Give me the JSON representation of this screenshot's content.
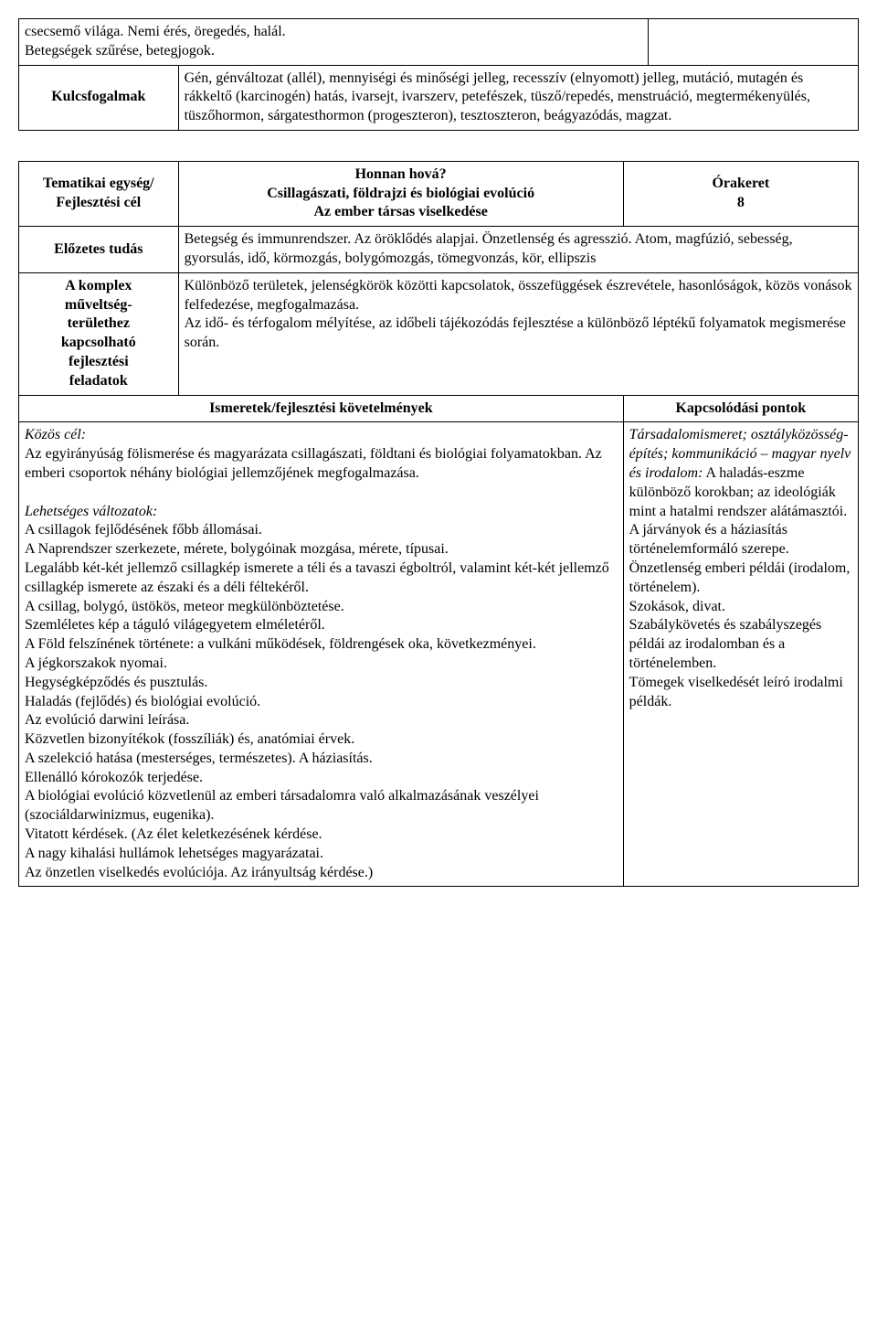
{
  "table1": {
    "row1_left": "csecsemő világa. Nemi érés, öregedés, halál.\nBetegségek szűrése, betegjogok.",
    "row2_label": "Kulcsfogalmak",
    "row2_content": "Gén, génváltozat (allél), mennyiségi és minőségi jelleg, recesszív (elnyomott) jelleg, mutáció, mutagén és rákkeltő (karcinogén) hatás, ivarsejt, ivarszerv, petefészek, tüsző/repedés, menstruáció, megtermékenyülés, tüszőhormon, sárgatesthormon (progeszteron), tesztoszteron, beágyazódás, magzat."
  },
  "table2": {
    "header": {
      "label1": "Tematikai egység/\nFejlesztési cél",
      "title": "Honnan hová?\nCsillagászati, földrajzi és biológiai evolúció\nAz ember társas viselkedése",
      "oraker_label": "Órakeret",
      "oraker_value": "8"
    },
    "elozetes": {
      "label": "Előzetes tudás",
      "content": "Betegség és immunrendszer. Az öröklődés alapjai. Önzetlenség és agresszió. Atom, magfúzió, sebesség, gyorsulás, idő, körmozgás, bolygómozgás, tömegvonzás, kör, ellipszis"
    },
    "komplex": {
      "label": "A komplex\nműveltség-\nterülethez\nkapcsolható\nfejlesztési\nfeladatok",
      "content": "Különböző területek, jelenségkörök közötti kapcsolatok, összefüggések észrevétele, hasonlóságok, közös vonások felfedezése, megfogalmazása.\nAz idő- és térfogalom mélyítése, az időbeli tájékozódás fejlesztése a különböző léptékű folyamatok megismerése során."
    },
    "section_headers": {
      "ismeretek": "Ismeretek/fejlesztési követelmények",
      "kapcsolodas": "Kapcsolódási pontok"
    },
    "main_content": {
      "kozos_cel_label": "Közös cél:",
      "kozos_cel_text": "Az egyirányúság fölismerése és magyarázata csillagászati, földtani és biológiai folyamatokban. Az emberi csoportok néhány biológiai jellemzőjének megfogalmazása.",
      "lehetseges_label": "Lehetséges változatok:",
      "lehetseges_items": [
        "A csillagok fejlődésének főbb állomásai.",
        "A Naprendszer szerkezete, mérete, bolygóinak mozgása, mérete, típusai.",
        "Legalább két-két jellemző csillagkép ismerete a téli és a tavaszi égboltról, valamint két-két jellemző csillagkép ismerete az északi és a déli féltekéről.",
        "A csillag, bolygó, üstökös, meteor megkülönböztetése.",
        "Szemléletes kép a táguló világegyetem elméletéről.",
        "A Föld felszínének története: a vulkáni működések, földrengések oka, következményei.",
        "A jégkorszakok nyomai.",
        "Hegységképződés és pusztulás.",
        "Haladás (fejlődés) és biológiai evolúció.",
        "Az evolúció darwini leírása.",
        "Közvetlen bizonyítékok (fosszíliák) és, anatómiai érvek.",
        "A szelekció hatása (mesterséges, természetes). A háziasítás.",
        "Ellenálló kórokozók terjedése.",
        "A biológiai evolúció közvetlenül az emberi társadalomra való alkalmazásának veszélyei (szociáldarwinizmus, eugenika).",
        "Vitatott kérdések. (Az élet keletkezésének kérdése.",
        "A nagy kihalási hullámok lehetséges magyarázatai.",
        "Az önzetlen viselkedés evolúciója. Az irányultság kérdése.)"
      ]
    },
    "kapcsolodas_content": {
      "italic_prefix": "Társadalomismeret; osztályközösség-építés; kommunikáció – magyar nyelv és irodalom:",
      "text": " A haladás-eszme különböző korokban; az ideológiák mint a hatalmi rendszer alátámasztói.\nA járványok és a háziasítás történelemformáló szerepe.\nÖnzetlenség emberi példái (irodalom, történelem).\nSzokások, divat.\nSzabálykövetés és szabályszegés példái az irodalomban és a történelemben.\nTömegek viselkedését leíró irodalmi példák."
    }
  }
}
